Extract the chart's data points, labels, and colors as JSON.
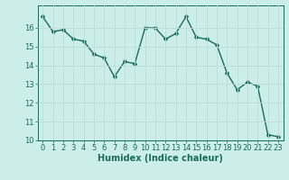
{
  "x": [
    0,
    1,
    2,
    3,
    4,
    5,
    6,
    7,
    8,
    9,
    10,
    11,
    12,
    13,
    14,
    15,
    16,
    17,
    18,
    19,
    20,
    21,
    22,
    23
  ],
  "y": [
    16.6,
    15.8,
    15.9,
    15.4,
    15.3,
    14.6,
    14.4,
    13.4,
    14.2,
    14.1,
    16.0,
    16.0,
    15.4,
    15.7,
    16.6,
    15.5,
    15.4,
    15.1,
    13.6,
    12.7,
    13.1,
    12.9,
    10.3,
    10.2
  ],
  "line_color": "#1a6b5a",
  "marker_color": "#1a6b5a",
  "bg_color": "#cceee8",
  "grid_color": "#c0ddd8",
  "xlabel": "Humidex (Indice chaleur)",
  "ylim": [
    10,
    17
  ],
  "xlim": [
    -0.5,
    23.5
  ],
  "yticks": [
    10,
    11,
    12,
    13,
    14,
    15,
    16
  ],
  "xticks": [
    0,
    1,
    2,
    3,
    4,
    5,
    6,
    7,
    8,
    9,
    10,
    11,
    12,
    13,
    14,
    15,
    16,
    17,
    18,
    19,
    20,
    21,
    22,
    23
  ],
  "xlabel_fontsize": 7,
  "tick_fontsize": 6,
  "line_width": 1.0,
  "marker_size": 2.5
}
